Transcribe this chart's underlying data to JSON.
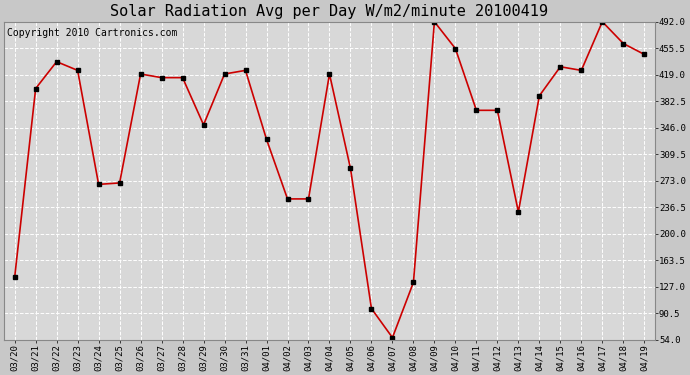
{
  "title": "Solar Radiation Avg per Day W/m2/minute 20100419",
  "copyright": "Copyright 2010 Cartronics.com",
  "dates": [
    "03/20",
    "03/21",
    "03/22",
    "03/23",
    "03/24",
    "03/25",
    "03/26",
    "03/27",
    "03/28",
    "03/29",
    "03/30",
    "03/31",
    "04/01",
    "04/02",
    "04/03",
    "04/04",
    "04/05",
    "04/06",
    "04/07",
    "04/08",
    "04/09",
    "04/10",
    "04/11",
    "04/12",
    "04/13",
    "04/14",
    "04/15",
    "04/16",
    "04/17",
    "04/18",
    "04/19"
  ],
  "values": [
    140,
    400,
    437,
    425,
    268,
    270,
    420,
    415,
    415,
    350,
    420,
    425,
    330,
    248,
    248,
    420,
    290,
    97,
    57,
    133,
    492,
    455,
    370,
    370,
    230,
    390,
    430,
    425,
    492,
    462,
    447
  ],
  "line_color": "#cc0000",
  "marker_color": "#000000",
  "bg_color": "#c8c8c8",
  "plot_bg_color": "#d8d8d8",
  "grid_color": "#ffffff",
  "yticks": [
    54.0,
    90.5,
    127.0,
    163.5,
    200.0,
    236.5,
    273.0,
    309.5,
    346.0,
    382.5,
    419.0,
    455.5,
    492.0
  ],
  "ylim": [
    54.0,
    492.0
  ],
  "title_fontsize": 11,
  "copyright_fontsize": 7
}
